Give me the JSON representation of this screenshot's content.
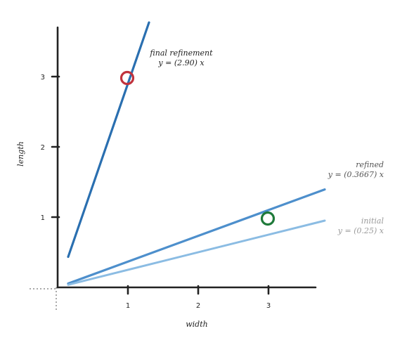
{
  "chart_data": {
    "type": "line",
    "xlabel": "width",
    "ylabel": "length",
    "xlim": [
      0,
      3.75
    ],
    "ylim": [
      0,
      3.7
    ],
    "x_ticks": [
      "1",
      "2",
      "3"
    ],
    "y_ticks": [
      "1",
      "2",
      "3"
    ],
    "series": [
      {
        "name": "final refinement",
        "equation": "y = (2.90) x",
        "slope": 2.9,
        "x_range": [
          0.15,
          1.3
        ],
        "color": "#2a6fb0"
      },
      {
        "name": "refined",
        "equation": "y = (0.3667) x",
        "slope": 0.3667,
        "x_range": [
          0.15,
          3.8
        ],
        "color": "#4d8fcc"
      },
      {
        "name": "initial",
        "equation": "y = (0.25) x",
        "slope": 0.25,
        "x_range": [
          0.15,
          3.8
        ],
        "color": "#8bbce3"
      }
    ],
    "points": [
      {
        "x": 1,
        "y": 3,
        "color": "#c0323c"
      },
      {
        "x": 3,
        "y": 1,
        "color": "#1f7a3a"
      }
    ],
    "label_colors": {
      "final refinement": "#222222",
      "refined": "#555555",
      "initial": "#9a9a9a"
    }
  }
}
